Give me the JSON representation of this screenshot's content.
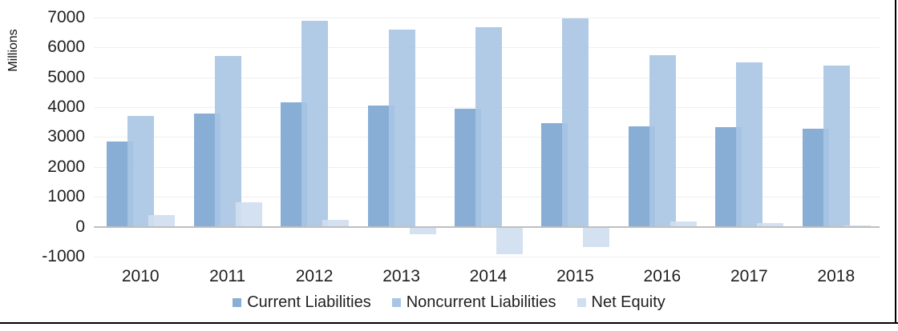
{
  "chart_data": {
    "type": "bar",
    "title": "",
    "ylabel": "Millions",
    "xlabel": "",
    "categories": [
      "2010",
      "2011",
      "2012",
      "2013",
      "2014",
      "2015",
      "2016",
      "2017",
      "2018"
    ],
    "series": [
      {
        "name": "Current Liabilities",
        "color": "#89AED6",
        "values": [
          2860,
          3780,
          4170,
          4060,
          3950,
          3480,
          3370,
          3340,
          3290
        ]
      },
      {
        "name": "Noncurrent Liabilities",
        "color": "#A9C5E4",
        "values": [
          3700,
          5720,
          6900,
          6600,
          6680,
          6980,
          5750,
          5490,
          5400
        ]
      },
      {
        "name": "Net Equity",
        "color": "#D0DEEF",
        "values": [
          400,
          820,
          230,
          -260,
          -930,
          -670,
          180,
          110,
          50
        ]
      }
    ],
    "ylim": [
      -1000,
      7000
    ],
    "ytick_step": 1000,
    "grid": true,
    "legend_position": "bottom",
    "colors": {
      "gridline": "#EFEFEF",
      "zero_line": "#BFBFBF",
      "frame_border": "#000000",
      "text": "#1F1F1F"
    }
  }
}
